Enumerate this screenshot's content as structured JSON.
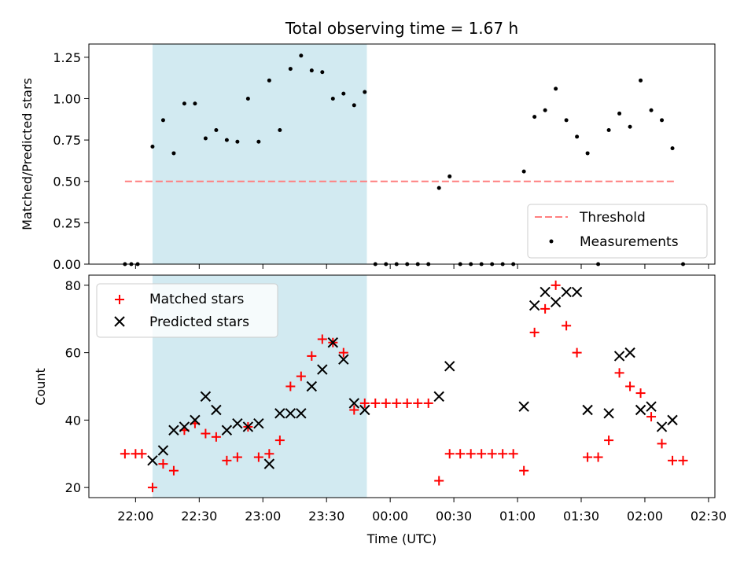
{
  "chart_data": [
    {
      "type": "scatter",
      "title": "Total observing time = 1.67 h",
      "ylabel": "Matched/Predicted stars",
      "xlabel": "",
      "ylim": [
        0,
        1.33
      ],
      "yticks": [
        0,
        0.25,
        0.5,
        0.75,
        1.0,
        1.25
      ],
      "yticklabels": [
        "0.00",
        "0.25",
        "0.50",
        "0.75",
        "1.00",
        "1.25"
      ],
      "shaded_interval": [
        "22:08",
        "23:49"
      ],
      "shade_color": "#add8e6",
      "legend_position": "lower-right",
      "threshold": {
        "name": "Threshold",
        "y": 0.5,
        "x_range": [
          "21:55",
          "02:15"
        ],
        "color": "#ff7f7f"
      },
      "series": [
        {
          "name": "Measurements",
          "marker": "dot",
          "color": "#000000",
          "x": [
            "21:55",
            "21:58",
            "22:01",
            "22:08",
            "22:13",
            "22:18",
            "22:23",
            "22:28",
            "22:33",
            "22:38",
            "22:43",
            "22:48",
            "22:53",
            "22:58",
            "23:03",
            "23:08",
            "23:13",
            "23:18",
            "23:23",
            "23:28",
            "23:33",
            "23:38",
            "23:43",
            "23:48",
            "23:53",
            "23:58",
            "00:03",
            "00:08",
            "00:13",
            "00:18",
            "00:23",
            "00:28",
            "00:33",
            "00:38",
            "00:43",
            "00:48",
            "00:53",
            "00:58",
            "01:03",
            "01:08",
            "01:13",
            "01:18",
            "01:23",
            "01:28",
            "01:33",
            "01:38",
            "01:43",
            "01:48",
            "01:53",
            "01:58",
            "02:03",
            "02:08",
            "02:13",
            "02:18"
          ],
          "y": [
            0,
            0,
            0,
            0.71,
            0.87,
            0.67,
            0.97,
            0.97,
            0.76,
            0.81,
            0.75,
            0.74,
            1.0,
            0.74,
            1.11,
            0.81,
            1.18,
            1.26,
            1.17,
            1.16,
            1.0,
            1.03,
            0.96,
            1.04,
            0,
            0,
            0,
            0,
            0,
            0,
            0.46,
            0.53,
            0,
            0,
            0,
            0,
            0,
            0,
            0.56,
            0.89,
            0.93,
            1.06,
            0.87,
            0.77,
            0.67,
            0,
            0.81,
            0.91,
            0.83,
            1.11,
            0.93,
            0.87,
            0.7,
            0
          ]
        }
      ]
    },
    {
      "type": "scatter",
      "xlabel": "Time (UTC)",
      "ylabel": "Count",
      "ylim": [
        17,
        83
      ],
      "yticks": [
        20,
        40,
        60,
        80
      ],
      "yticklabels": [
        "20",
        "40",
        "60",
        "80"
      ],
      "xticks": [
        "22:00",
        "22:30",
        "23:00",
        "23:30",
        "00:00",
        "00:30",
        "01:00",
        "01:30",
        "02:00",
        "02:30"
      ],
      "xlim": [
        "21:38",
        "02:33"
      ],
      "shaded_interval": [
        "22:08",
        "23:49"
      ],
      "shade_color": "#add8e6",
      "legend_position": "upper-left",
      "series": [
        {
          "name": "Matched stars",
          "marker": "plus",
          "color": "#ff0000",
          "x": [
            "21:55",
            "22:00",
            "22:03",
            "22:08",
            "22:13",
            "22:18",
            "22:23",
            "22:28",
            "22:33",
            "22:38",
            "22:43",
            "22:48",
            "22:53",
            "22:58",
            "23:03",
            "23:08",
            "23:13",
            "23:18",
            "23:23",
            "23:28",
            "23:33",
            "23:38",
            "23:43",
            "23:48",
            "23:53",
            "23:58",
            "00:03",
            "00:08",
            "00:13",
            "00:18",
            "00:23",
            "00:28",
            "00:33",
            "00:38",
            "00:43",
            "00:48",
            "00:53",
            "00:58",
            "01:03",
            "01:08",
            "01:13",
            "01:18",
            "01:23",
            "01:28",
            "01:33",
            "01:38",
            "01:43",
            "01:48",
            "01:53",
            "01:58",
            "02:03",
            "02:08",
            "02:13",
            "02:18"
          ],
          "y": [
            30,
            30,
            30,
            20,
            27,
            25,
            37,
            39,
            36,
            35,
            28,
            29,
            38,
            29,
            30,
            34,
            50,
            53,
            59,
            64,
            63,
            60,
            43,
            45,
            45,
            45,
            45,
            45,
            45,
            45,
            22,
            30,
            30,
            30,
            30,
            30,
            30,
            30,
            25,
            66,
            73,
            80,
            68,
            60,
            29,
            29,
            34,
            54,
            50,
            48,
            41,
            33,
            28,
            28
          ]
        },
        {
          "name": "Predicted stars",
          "marker": "x",
          "color": "#000000",
          "x": [
            "22:08",
            "22:13",
            "22:18",
            "22:23",
            "22:28",
            "22:33",
            "22:38",
            "22:43",
            "22:48",
            "22:53",
            "22:58",
            "23:03",
            "23:08",
            "23:13",
            "23:18",
            "23:23",
            "23:28",
            "23:33",
            "23:38",
            "23:43",
            "23:48",
            "00:23",
            "00:28",
            "01:03",
            "01:08",
            "01:13",
            "01:18",
            "01:23",
            "01:28",
            "01:33",
            "01:43",
            "01:48",
            "01:53",
            "01:58",
            "02:03",
            "02:08",
            "02:13"
          ],
          "y": [
            28,
            31,
            37,
            38,
            40,
            47,
            43,
            37,
            39,
            38,
            39,
            27,
            42,
            42,
            42,
            50,
            55,
            63,
            58,
            45,
            43,
            47,
            56,
            44,
            74,
            78,
            75,
            78,
            78,
            43,
            42,
            59,
            60,
            43,
            44,
            38,
            40
          ]
        }
      ]
    }
  ]
}
